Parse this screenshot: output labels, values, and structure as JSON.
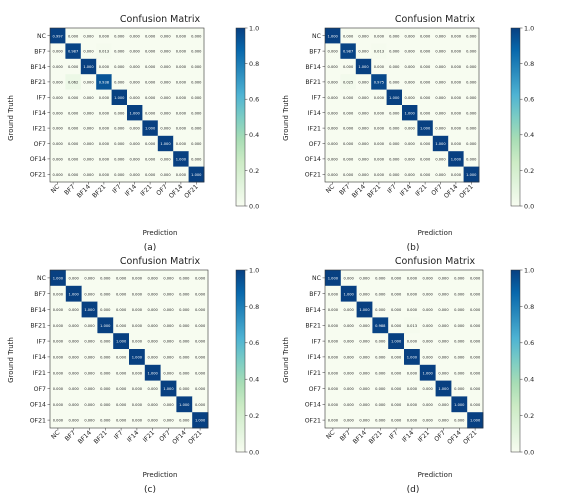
{
  "chart_data": [
    {
      "type": "heatmap",
      "panel_label": "(a)",
      "title": "Confusion Matrix",
      "xlabel": "Prediction",
      "ylabel": "Ground Truth",
      "x_categories": [
        "NC",
        "BF7",
        "BF14",
        "BF21",
        "IF7",
        "IF14",
        "IF21",
        "OF7",
        "OF14",
        "OF21"
      ],
      "y_categories": [
        "NC",
        "BF7",
        "BF14",
        "BF21",
        "IF7",
        "IF14",
        "IF21",
        "OF7",
        "OF14",
        "OF21"
      ],
      "matrix": [
        [
          0.997,
          0.0,
          0.0,
          0.0,
          0.0,
          0.0,
          0.0,
          0.0,
          0.0,
          0.0
        ],
        [
          0.0,
          0.987,
          0.0,
          0.013,
          0.0,
          0.0,
          0.0,
          0.0,
          0.0,
          0.0
        ],
        [
          0.0,
          0.0,
          1.0,
          0.0,
          0.0,
          0.0,
          0.0,
          0.0,
          0.0,
          0.0
        ],
        [
          0.0,
          0.062,
          0.0,
          0.938,
          0.0,
          0.0,
          0.0,
          0.0,
          0.0,
          0.0
        ],
        [
          0.0,
          0.0,
          0.0,
          0.0,
          1.0,
          0.0,
          0.0,
          0.0,
          0.0,
          0.0
        ],
        [
          0.0,
          0.0,
          0.0,
          0.0,
          0.0,
          1.0,
          0.0,
          0.0,
          0.0,
          0.0
        ],
        [
          0.0,
          0.0,
          0.0,
          0.0,
          0.0,
          0.0,
          1.0,
          0.0,
          0.0,
          0.0
        ],
        [
          0.0,
          0.0,
          0.0,
          0.0,
          0.0,
          0.0,
          0.0,
          1.0,
          0.0,
          0.0
        ],
        [
          0.0,
          0.0,
          0.0,
          0.0,
          0.0,
          0.0,
          0.0,
          0.0,
          1.0,
          0.0
        ],
        [
          0.0,
          0.0,
          0.0,
          0.0,
          0.0,
          0.0,
          0.0,
          0.0,
          0.0,
          1.0
        ]
      ],
      "colorbar": {
        "range": [
          0,
          1.0
        ],
        "ticks": [
          "0.0",
          "0.2",
          "0.4",
          "0.6",
          "0.8",
          "1.0"
        ]
      },
      "colormap": [
        "#f7fcf0",
        "#e0f3db",
        "#ccebc5",
        "#a8ddb5",
        "#7bccc4",
        "#4eb3d3",
        "#2b8cbe",
        "#0868ac",
        "#084081"
      ]
    },
    {
      "type": "heatmap",
      "panel_label": "(b)",
      "title": "Confusion Matrix",
      "xlabel": "Prediction",
      "ylabel": "Ground Truth",
      "x_categories": [
        "NC",
        "BF7",
        "BF14",
        "BF21",
        "IF7",
        "IF14",
        "IF21",
        "OF7",
        "OF14",
        "OF21"
      ],
      "y_categories": [
        "NC",
        "BF7",
        "BF14",
        "BF21",
        "IF7",
        "IF14",
        "IF21",
        "OF7",
        "OF14",
        "OF21"
      ],
      "matrix": [
        [
          1.0,
          0.0,
          0.0,
          0.0,
          0.0,
          0.0,
          0.0,
          0.0,
          0.0,
          0.0
        ],
        [
          0.0,
          0.987,
          0.0,
          0.013,
          0.0,
          0.0,
          0.0,
          0.0,
          0.0,
          0.0
        ],
        [
          0.0,
          0.0,
          1.0,
          0.0,
          0.0,
          0.0,
          0.0,
          0.0,
          0.0,
          0.0
        ],
        [
          0.0,
          0.025,
          0.0,
          0.975,
          0.0,
          0.0,
          0.0,
          0.0,
          0.0,
          0.0
        ],
        [
          0.0,
          0.0,
          0.0,
          0.0,
          1.0,
          0.0,
          0.0,
          0.0,
          0.0,
          0.0
        ],
        [
          0.0,
          0.0,
          0.0,
          0.0,
          0.0,
          1.0,
          0.0,
          0.0,
          0.0,
          0.0
        ],
        [
          0.0,
          0.0,
          0.0,
          0.0,
          0.0,
          0.0,
          1.0,
          0.0,
          0.0,
          0.0
        ],
        [
          0.0,
          0.0,
          0.0,
          0.0,
          0.0,
          0.0,
          0.0,
          1.0,
          0.0,
          0.0
        ],
        [
          0.0,
          0.0,
          0.0,
          0.0,
          0.0,
          0.0,
          0.0,
          0.0,
          1.0,
          0.0
        ],
        [
          0.0,
          0.0,
          0.0,
          0.0,
          0.0,
          0.0,
          0.0,
          0.0,
          0.0,
          1.0
        ]
      ],
      "colorbar": {
        "range": [
          0,
          1.0
        ],
        "ticks": [
          "0.0",
          "0.2",
          "0.4",
          "0.6",
          "0.8",
          "1.0"
        ]
      },
      "colormap": [
        "#f7fcf0",
        "#e0f3db",
        "#ccebc5",
        "#a8ddb5",
        "#7bccc4",
        "#4eb3d3",
        "#2b8cbe",
        "#0868ac",
        "#084081"
      ]
    },
    {
      "type": "heatmap",
      "panel_label": "(c)",
      "title": "Confusion Matrix",
      "xlabel": "Prediction",
      "ylabel": "Ground Truth",
      "x_categories": [
        "NC",
        "BF7",
        "BF14",
        "BF21",
        "IF7",
        "IF14",
        "IF21",
        "OF7",
        "OF14",
        "OF21"
      ],
      "y_categories": [
        "NC",
        "BF7",
        "BF14",
        "BF21",
        "IF7",
        "IF14",
        "IF21",
        "OF7",
        "OF14",
        "OF21"
      ],
      "matrix": [
        [
          1.0,
          0.0,
          0.0,
          0.0,
          0.0,
          0.0,
          0.0,
          0.0,
          0.0,
          0.0
        ],
        [
          0.0,
          1.0,
          0.0,
          0.0,
          0.0,
          0.0,
          0.0,
          0.0,
          0.0,
          0.0
        ],
        [
          0.0,
          0.0,
          1.0,
          0.0,
          0.0,
          0.0,
          0.0,
          0.0,
          0.0,
          0.0
        ],
        [
          0.0,
          0.0,
          0.0,
          1.0,
          0.0,
          0.0,
          0.0,
          0.0,
          0.0,
          0.0
        ],
        [
          0.0,
          0.0,
          0.0,
          0.0,
          1.0,
          0.0,
          0.0,
          0.0,
          0.0,
          0.0
        ],
        [
          0.0,
          0.0,
          0.0,
          0.0,
          0.0,
          1.0,
          0.0,
          0.0,
          0.0,
          0.0
        ],
        [
          0.0,
          0.0,
          0.0,
          0.0,
          0.0,
          0.0,
          1.0,
          0.0,
          0.0,
          0.0
        ],
        [
          0.0,
          0.0,
          0.0,
          0.0,
          0.0,
          0.0,
          0.0,
          1.0,
          0.0,
          0.0
        ],
        [
          0.0,
          0.0,
          0.0,
          0.0,
          0.0,
          0.0,
          0.0,
          0.0,
          1.0,
          0.0
        ],
        [
          0.0,
          0.0,
          0.0,
          0.0,
          0.0,
          0.0,
          0.0,
          0.0,
          0.0,
          1.0
        ]
      ],
      "colorbar": {
        "range": [
          0,
          1.0
        ],
        "ticks": [
          "0.0",
          "0.2",
          "0.4",
          "0.6",
          "0.8",
          "1.0"
        ]
      },
      "colormap": [
        "#f7fcf0",
        "#e0f3db",
        "#ccebc5",
        "#a8ddb5",
        "#7bccc4",
        "#4eb3d3",
        "#2b8cbe",
        "#0868ac",
        "#084081"
      ]
    },
    {
      "type": "heatmap",
      "panel_label": "(d)",
      "title": "Confusion Matrix",
      "xlabel": "Prediction",
      "ylabel": "Ground Truth",
      "x_categories": [
        "NC",
        "BF7",
        "BF14",
        "BF21",
        "IF7",
        "IF14",
        "IF21",
        "OF7",
        "OF14",
        "OF21"
      ],
      "y_categories": [
        "NC",
        "BF7",
        "BF14",
        "BF21",
        "IF7",
        "IF14",
        "IF21",
        "OF7",
        "OF14",
        "OF21"
      ],
      "matrix": [
        [
          1.0,
          0.0,
          0.0,
          0.0,
          0.0,
          0.0,
          0.0,
          0.0,
          0.0,
          0.0
        ],
        [
          0.0,
          1.0,
          0.0,
          0.0,
          0.0,
          0.0,
          0.0,
          0.0,
          0.0,
          0.0
        ],
        [
          0.0,
          0.0,
          1.0,
          0.0,
          0.0,
          0.0,
          0.0,
          0.0,
          0.0,
          0.0
        ],
        [
          0.0,
          0.0,
          0.0,
          0.988,
          0.0,
          0.013,
          0.0,
          0.0,
          0.0,
          0.0
        ],
        [
          0.0,
          0.0,
          0.0,
          0.0,
          1.0,
          0.0,
          0.0,
          0.0,
          0.0,
          0.0
        ],
        [
          0.0,
          0.0,
          0.0,
          0.0,
          0.0,
          1.0,
          0.0,
          0.0,
          0.0,
          0.0
        ],
        [
          0.0,
          0.0,
          0.0,
          0.0,
          0.0,
          0.0,
          1.0,
          0.0,
          0.0,
          0.0
        ],
        [
          0.0,
          0.0,
          0.0,
          0.0,
          0.0,
          0.0,
          0.0,
          1.0,
          0.0,
          0.0
        ],
        [
          0.0,
          0.0,
          0.0,
          0.0,
          0.0,
          0.0,
          0.0,
          0.0,
          1.0,
          0.0
        ],
        [
          0.0,
          0.0,
          0.0,
          0.0,
          0.0,
          0.0,
          0.0,
          0.0,
          0.0,
          1.0
        ]
      ],
      "colorbar": {
        "range": [
          0,
          1.0
        ],
        "ticks": [
          "0.0",
          "0.2",
          "0.4",
          "0.6",
          "0.8",
          "1.0"
        ]
      },
      "colormap": [
        "#f7fcf0",
        "#e0f3db",
        "#ccebc5",
        "#a8ddb5",
        "#7bccc4",
        "#4eb3d3",
        "#2b8cbe",
        "#0868ac",
        "#084081"
      ]
    }
  ]
}
